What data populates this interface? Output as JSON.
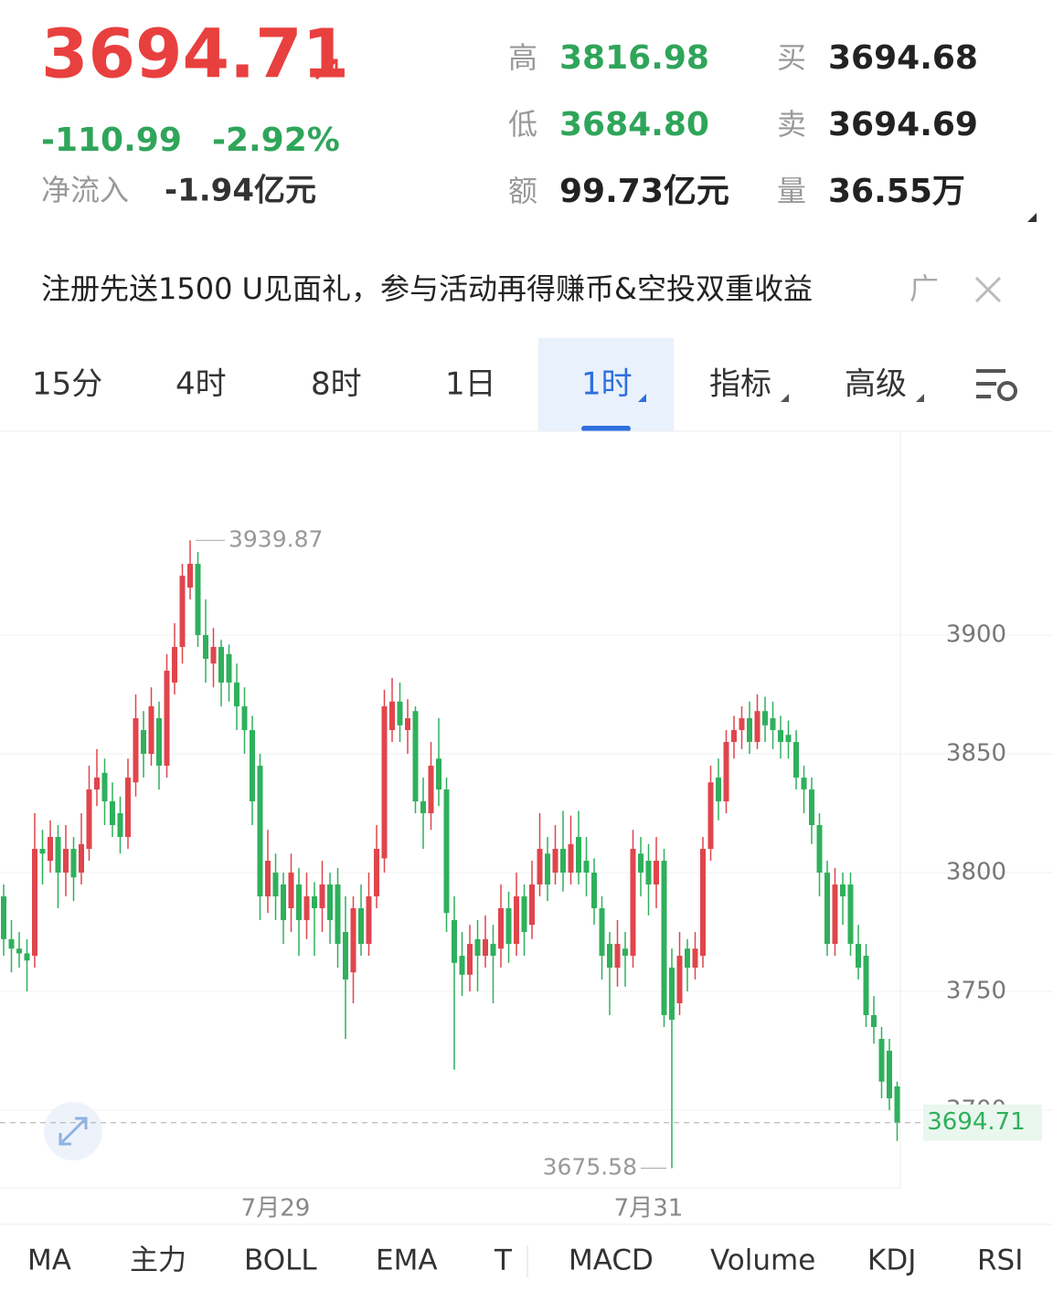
{
  "header": {
    "price": "3694.71",
    "change": "-110.99",
    "change_pct": "-2.92%",
    "net_inflow_label": "净流入",
    "net_inflow": "-1.94亿元",
    "stats": [
      {
        "label": "高",
        "value": "3816.98"
      },
      {
        "label": "低",
        "value": "3684.80"
      },
      {
        "label": "额",
        "value": "99.73亿元"
      },
      {
        "label": "买",
        "value": "3694.68"
      },
      {
        "label": "卖",
        "value": "3694.69"
      },
      {
        "label": "量",
        "value": "36.55万"
      }
    ]
  },
  "ad": {
    "text": "注册先送1500 U见面礼，参与活动再得赚币&空投双重收益",
    "tag": "广"
  },
  "tabs": {
    "items": [
      "15分",
      "4时",
      "8时",
      "1日",
      "1时",
      "指标",
      "高级"
    ],
    "active": 4
  },
  "indicators": [
    "MA",
    "主力",
    "BOLL",
    "EMA",
    "T",
    "MACD",
    "Volume",
    "KDJ",
    "RSI"
  ],
  "chart_data": {
    "type": "candlestick",
    "up_color": "#e0454c",
    "down_color": "#2fb05c",
    "grid": true,
    "ylim": [
      3667.3,
      3985.8
    ],
    "yticks": [
      3700,
      3750,
      3800,
      3850,
      3900
    ],
    "last_price": 3694.71,
    "categories": [
      null,
      null,
      null,
      null,
      null,
      null,
      null,
      null,
      null,
      null,
      null,
      null,
      null,
      null,
      null,
      null,
      null,
      null,
      null,
      null,
      null,
      null,
      null,
      null,
      null,
      null,
      null,
      null,
      null,
      null,
      null,
      null,
      null,
      null,
      null,
      "7月29",
      null,
      null,
      null,
      null,
      null,
      null,
      null,
      null,
      null,
      null,
      null,
      null,
      null,
      null,
      null,
      null,
      null,
      null,
      null,
      null,
      null,
      null,
      null,
      null,
      null,
      null,
      null,
      null,
      null,
      null,
      null,
      null,
      null,
      null,
      null,
      null,
      null,
      null,
      null,
      null,
      null,
      null,
      null,
      null,
      null,
      null,
      null,
      "7月31",
      null,
      null,
      null,
      null,
      null,
      null,
      null,
      null,
      null,
      null,
      null,
      null,
      null,
      null,
      null,
      null,
      null,
      null,
      null,
      null,
      null,
      null,
      null,
      null,
      null,
      null,
      null,
      null,
      null,
      null,
      null,
      null
    ],
    "open": [
      3790,
      3772,
      3768,
      3766,
      3765,
      3810,
      3805,
      3815,
      3800,
      3810,
      3800,
      3810,
      3835,
      3842,
      3830,
      3825,
      3815,
      3838,
      3860,
      3850,
      3865,
      3845,
      3880,
      3895,
      3920,
      3930,
      3900,
      3888,
      3895,
      3892,
      3880,
      3870,
      3860,
      3845,
      3790,
      3800,
      3795,
      3785,
      3795,
      3780,
      3790,
      3785,
      3795,
      3795,
      3775,
      3758,
      3785,
      3770,
      3790,
      3806,
      3860,
      3872,
      3860,
      3868,
      3830,
      3825,
      3848,
      3835,
      3780,
      3765,
      3757,
      3772,
      3765,
      3770,
      3768,
      3785,
      3770,
      3790,
      3778,
      3795,
      3808,
      3800,
      3810,
      3800,
      3815,
      3805,
      3800,
      3785,
      3770,
      3760,
      3768,
      3765,
      3808,
      3805,
      3795,
      3805,
      3760,
      3745,
      3768,
      3760,
      3765,
      3810,
      3840,
      3830,
      3855,
      3860,
      3865,
      3855,
      3868,
      3865,
      3860,
      3858,
      3855,
      3840,
      3835,
      3820,
      3800,
      3770,
      3795,
      3795,
      3770,
      3765,
      3740,
      3730,
      3725,
      3710
    ],
    "high": [
      3795,
      3780,
      3775,
      3772,
      3825,
      3818,
      3822,
      3820,
      3820,
      3815,
      3825,
      3845,
      3852,
      3848,
      3838,
      3832,
      3848,
      3875,
      3868,
      3878,
      3872,
      3892,
      3905,
      3930,
      3939.87,
      3935,
      3915,
      3903,
      3898,
      3896,
      3888,
      3878,
      3866,
      3850,
      3818,
      3808,
      3800,
      3808,
      3802,
      3800,
      3796,
      3805,
      3800,
      3802,
      3790,
      3790,
      3795,
      3800,
      3820,
      3877,
      3882,
      3880,
      3873,
      3870,
      3840,
      3855,
      3865,
      3840,
      3790,
      3775,
      3778,
      3780,
      3782,
      3778,
      3795,
      3792,
      3800,
      3795,
      3805,
      3825,
      3815,
      3820,
      3826,
      3824,
      3826,
      3815,
      3806,
      3790,
      3775,
      3780,
      3775,
      3818,
      3815,
      3812,
      3815,
      3810,
      3768,
      3775,
      3772,
      3775,
      3815,
      3845,
      3848,
      3860,
      3866,
      3870,
      3872,
      3875,
      3874,
      3872,
      3866,
      3864,
      3860,
      3845,
      3840,
      3825,
      3805,
      3802,
      3800,
      3800,
      3778,
      3770,
      3748,
      3735,
      3730,
      3712
    ],
    "low": [
      3765,
      3758,
      3760,
      3750,
      3760,
      3795,
      3800,
      3785,
      3790,
      3788,
      3795,
      3805,
      3828,
      3820,
      3815,
      3808,
      3810,
      3832,
      3840,
      3845,
      3835,
      3840,
      3875,
      3888,
      3915,
      3895,
      3880,
      3878,
      3870,
      3872,
      3860,
      3850,
      3820,
      3780,
      3783,
      3780,
      3770,
      3775,
      3765,
      3772,
      3765,
      3775,
      3770,
      3760,
      3730,
      3745,
      3765,
      3765,
      3785,
      3800,
      3855,
      3855,
      3850,
      3825,
      3810,
      3818,
      3828,
      3775,
      3717,
      3748,
      3750,
      3750,
      3760,
      3745,
      3760,
      3762,
      3765,
      3765,
      3772,
      3790,
      3788,
      3795,
      3792,
      3795,
      3795,
      3790,
      3778,
      3755,
      3740,
      3752,
      3752,
      3760,
      3790,
      3782,
      3785,
      3735,
      3675.58,
      3740,
      3750,
      3755,
      3760,
      3805,
      3822,
      3825,
      3848,
      3852,
      3850,
      3852,
      3855,
      3852,
      3848,
      3848,
      3835,
      3825,
      3812,
      3790,
      3765,
      3765,
      3778,
      3765,
      3755,
      3735,
      3728,
      3705,
      3700,
      3687
    ],
    "close": [
      3772,
      3768,
      3766,
      3763,
      3810,
      3808,
      3815,
      3800,
      3810,
      3798,
      3812,
      3835,
      3840,
      3830,
      3820,
      3815,
      3840,
      3865,
      3850,
      3870,
      3845,
      3885,
      3895,
      3925,
      3930,
      3900,
      3890,
      3895,
      3880,
      3880,
      3870,
      3860,
      3830,
      3790,
      3805,
      3790,
      3780,
      3800,
      3780,
      3790,
      3785,
      3795,
      3780,
      3770,
      3755,
      3785,
      3770,
      3790,
      3810,
      3870,
      3872,
      3862,
      3865,
      3830,
      3825,
      3845,
      3835,
      3783,
      3762,
      3757,
      3770,
      3765,
      3772,
      3765,
      3785,
      3770,
      3790,
      3775,
      3795,
      3810,
      3795,
      3810,
      3800,
      3812,
      3800,
      3800,
      3785,
      3765,
      3760,
      3770,
      3765,
      3810,
      3800,
      3795,
      3805,
      3740,
      3738,
      3765,
      3760,
      3768,
      3810,
      3838,
      3830,
      3855,
      3860,
      3865,
      3855,
      3868,
      3862,
      3860,
      3855,
      3855,
      3840,
      3835,
      3820,
      3800,
      3770,
      3795,
      3790,
      3770,
      3760,
      3740,
      3735,
      3712,
      3705,
      3694.71
    ]
  }
}
